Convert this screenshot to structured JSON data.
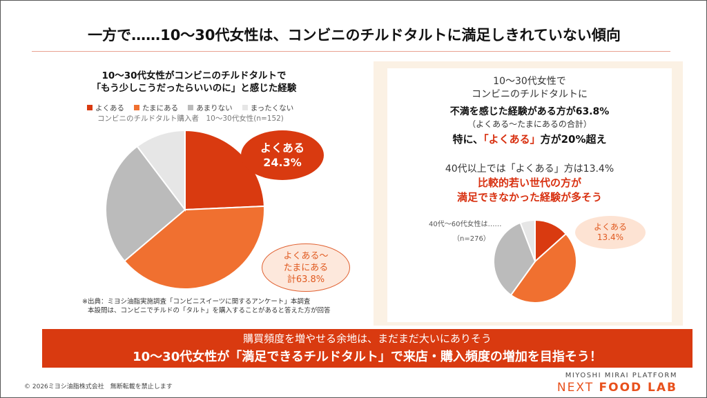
{
  "title": "一方で……10～30代女性は、コンビニのチルドタルトに満足しきれていない傾向",
  "colors": {
    "accent": "#d93a10",
    "orange": "#f07030",
    "gray": "#bbbbbb",
    "light": "#e6e6e6"
  },
  "chart_data": [
    {
      "type": "pie",
      "title_lines": [
        "10～30代女性がコンビニのチルドタルトで",
        "「もう少しこうだったらいいのに」と感じた経験"
      ],
      "subtitle": "コンビニのチルドタルト購入者　10～30代女性(n=152)",
      "legend_position": "top",
      "categories": [
        "よくある",
        "たまにある",
        "あまりない",
        "まったくない"
      ],
      "values": [
        24.3,
        39.5,
        25.9,
        10.3
      ],
      "colors": [
        "#d93a10",
        "#f07030",
        "#bbbbbb",
        "#e6e6e6"
      ],
      "annotations": [
        {
          "lines": [
            "よくある",
            "24.3%"
          ]
        },
        {
          "lines": [
            "よくある～",
            "たまにある",
            "計63.8%"
          ]
        }
      ]
    },
    {
      "type": "pie",
      "label": "40代～60代女性は……",
      "n": "（n=276）",
      "categories": [
        "よくある",
        "たまにある",
        "あまりない",
        "まったくない"
      ],
      "values": [
        13.4,
        46.5,
        34.3,
        5.8
      ],
      "colors": [
        "#d93a10",
        "#f07030",
        "#bbbbbb",
        "#e6e6e6"
      ],
      "annotations": [
        {
          "lines": [
            "よくある",
            "13.4%"
          ]
        }
      ]
    }
  ],
  "source": [
    "※出典：ミヨシ油脂実施調査「コンビニスイーツに関するアンケート」本調査",
    "本設問は、コンビニでチルドの「タルト」を購入することがあると答えた方が回答"
  ],
  "panel": {
    "l1": "10～30代女性で",
    "l2": "コンビニのチルドタルトに",
    "l3": "不満を感じた経験がある方が63.8%",
    "l4": "（よくある～たまにあるの合計）",
    "l5a": "特に、",
    "l5b": "「よくある」",
    "l5c": "方が20%超え",
    "l6": "40代以上では「よくある」方は13.4%",
    "l7": "比較的若い世代の方が",
    "l8": "満足できなかった経験が多そう"
  },
  "banner": {
    "line1": "購買頻度を増やせる余地は、まだまだ大いにありそう",
    "line2": "10～30代女性が「満足できるチルドタルト」で来店・購入頻度の増加を目指そう！"
  },
  "footer": {
    "copyright": "© 2026ミヨシ油脂株式会社　無断転載を禁止します",
    "brand_top": "MIYOSHI MIRAI PLATFORM",
    "brand_a": "NEXT ",
    "brand_b": "FOOD LAB"
  }
}
